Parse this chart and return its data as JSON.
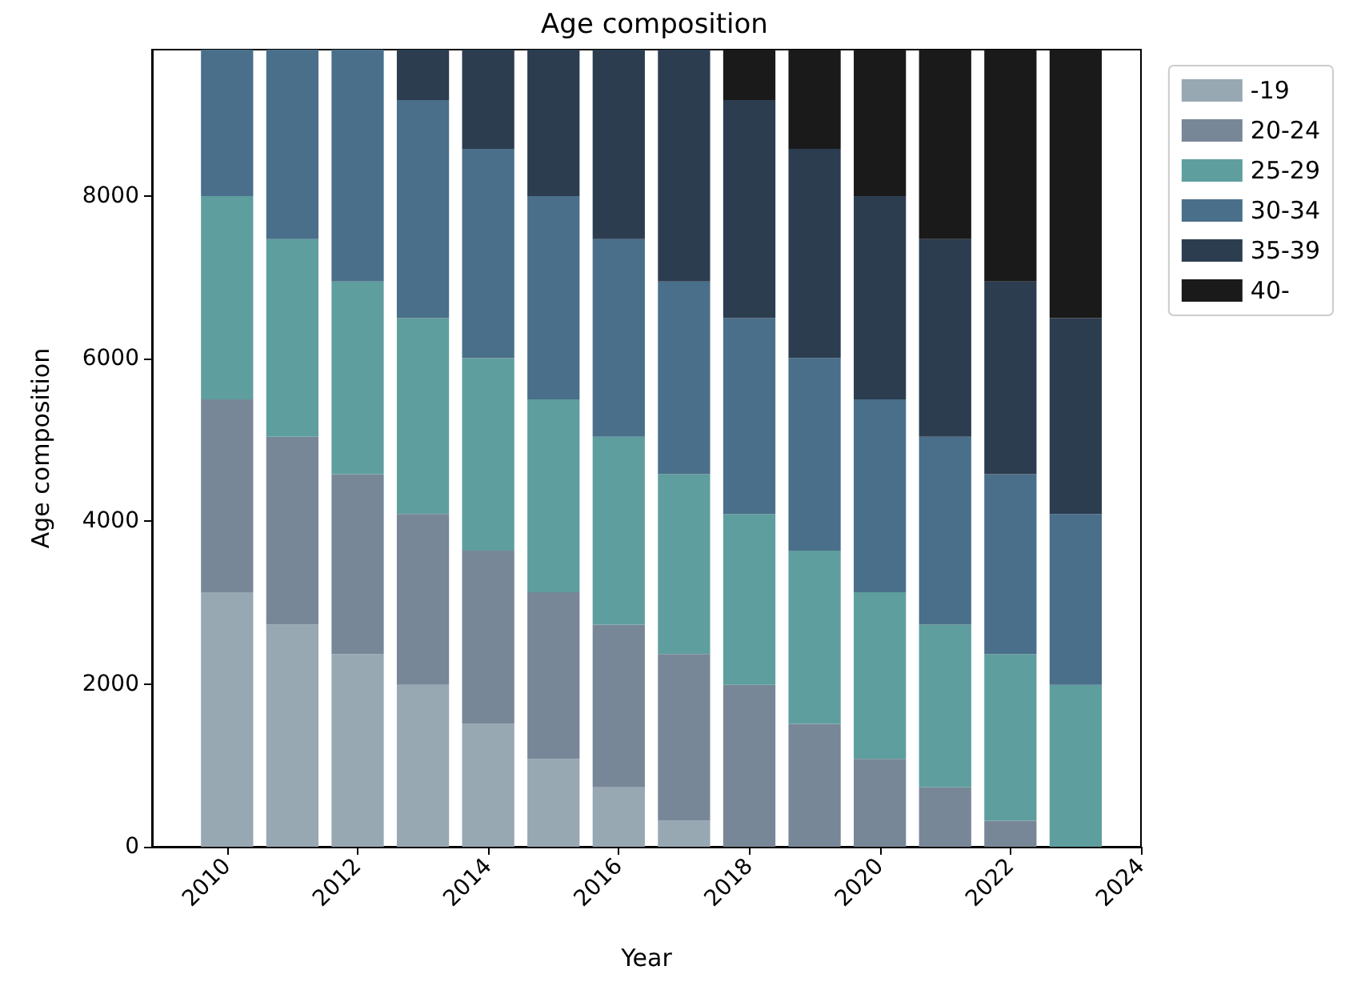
{
  "chart_data": {
    "type": "bar",
    "title": "Age composition",
    "xlabel": "Year",
    "ylabel": "Age composition",
    "x": [
      2010,
      2011,
      2012,
      2013,
      2014,
      2015,
      2016,
      2017,
      2018,
      2019,
      2020,
      2021,
      2022,
      2023
    ],
    "stacked": true,
    "series": [
      {
        "name": "-19",
        "color": "#97a8b3",
        "values": [
          3130,
          2730,
          2370,
          1990,
          1510,
          1080,
          730,
          320,
          0,
          0,
          0,
          0,
          0,
          0
        ]
      },
      {
        "name": "20-24",
        "color": "#788797",
        "values": [
          2370,
          2310,
          2210,
          2100,
          2130,
          2050,
          2000,
          2050,
          1990,
          1510,
          1080,
          730,
          320,
          0
        ]
      },
      {
        "name": "25-29",
        "color": "#5f9e9e",
        "values": [
          2500,
          2430,
          2370,
          2410,
          2370,
          2370,
          2310,
          2210,
          2100,
          2130,
          2050,
          2000,
          2050,
          1990
        ]
      },
      {
        "name": "30-34",
        "color": "#4a6f8a",
        "values": [
          1800,
          2330,
          2850,
          2680,
          2570,
          2500,
          2430,
          2370,
          2410,
          2370,
          2370,
          2310,
          2210,
          2100
        ]
      },
      {
        "name": "35-39",
        "color": "#2c3d50",
        "values": [
          0,
          0,
          0,
          620,
          1220,
          1800,
          2330,
          2850,
          2680,
          2570,
          2500,
          2430,
          2370,
          2410
        ]
      },
      {
        "name": "40-",
        "color": "#1a1a1a",
        "values": [
          0,
          0,
          0,
          0,
          0,
          0,
          0,
          0,
          620,
          1220,
          1800,
          2330,
          2850,
          3300
        ]
      }
    ],
    "xlim": [
      2008.85,
      2024
    ],
    "xticks": [
      2010,
      2012,
      2014,
      2016,
      2018,
      2020,
      2022,
      2024
    ],
    "ylim": [
      0,
      9800
    ],
    "yticks": [
      0,
      2000,
      4000,
      6000,
      8000
    ],
    "grid": false,
    "legend": "right"
  }
}
